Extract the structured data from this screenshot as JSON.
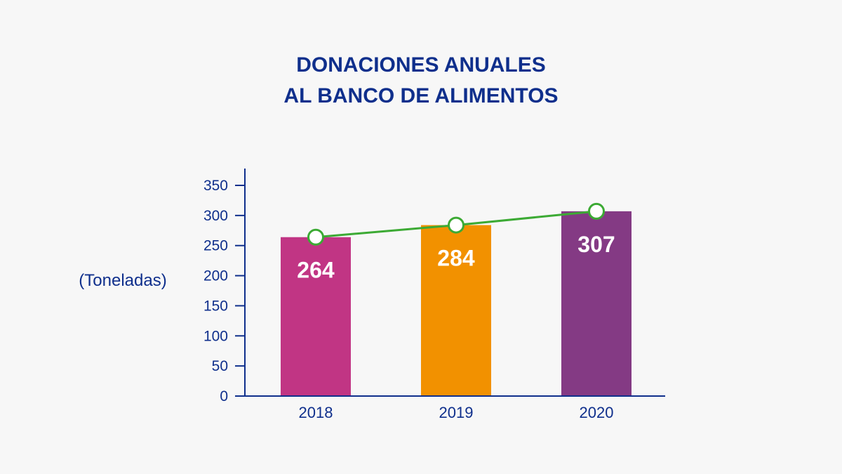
{
  "chart_data": {
    "type": "bar",
    "title": [
      "DONACIONES ANUALES",
      "AL BANCO DE ALIMENTOS"
    ],
    "ylabel": "(Toneladas)",
    "categories": [
      "2018",
      "2019",
      "2020"
    ],
    "values": [
      264,
      284,
      307
    ],
    "data_labels": [
      "264",
      "284",
      "307"
    ],
    "yticks": [
      0,
      50,
      100,
      150,
      200,
      250,
      300,
      350
    ],
    "ylim": [
      0,
      375
    ],
    "bar_colors": [
      "#c13584",
      "#f29100",
      "#843a84"
    ],
    "trend_line": {
      "color": "#3caa34",
      "values": [
        264,
        284,
        307
      ]
    },
    "axis_color": "#0f2f8c",
    "grid": false,
    "legend": "none"
  }
}
